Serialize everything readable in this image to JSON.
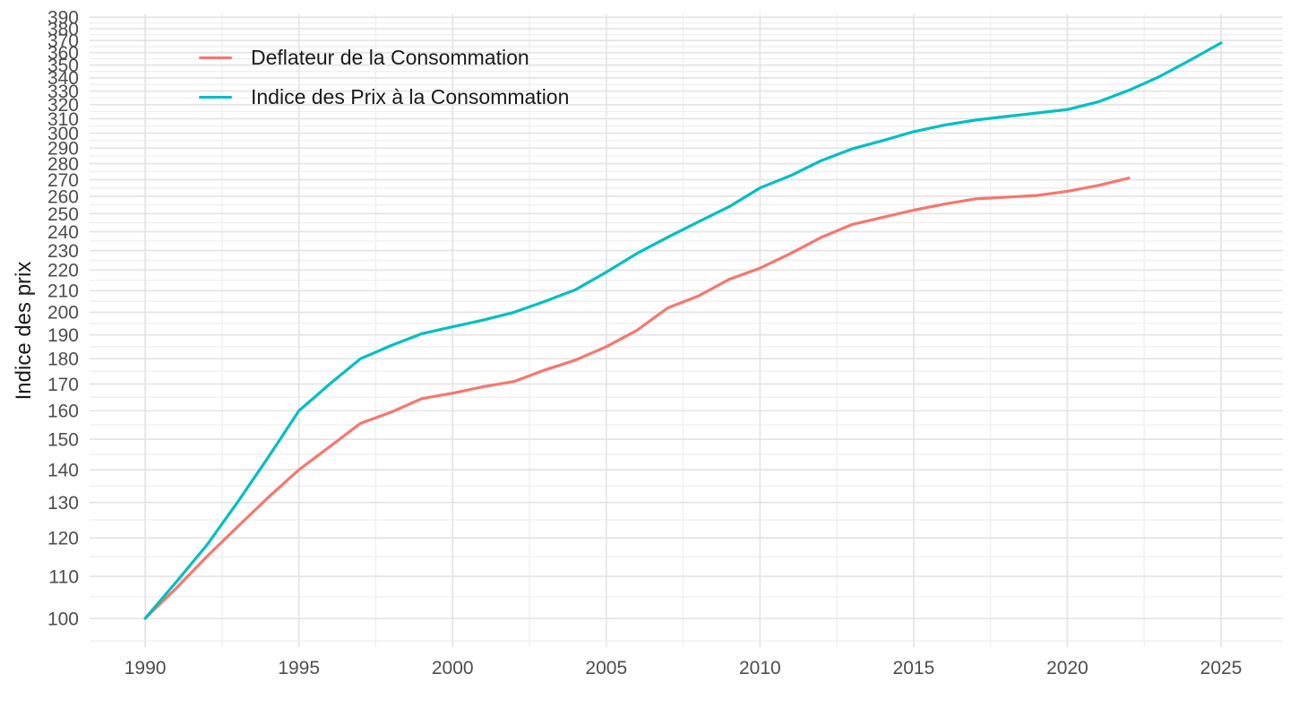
{
  "chart_data": {
    "type": "line",
    "title": "",
    "xlabel": "",
    "ylabel": "Indice des prix",
    "y_scale": "log",
    "frequency": "annual",
    "x_domain": [
      1988.19,
      2027.01
    ],
    "y_domain": [
      93.7,
      392.6
    ],
    "x_ticks": [
      1990,
      1995,
      2000,
      2005,
      2010,
      2015,
      2020,
      2025
    ],
    "x_minor_ticks": [
      1992.5,
      1997.5,
      2002.5,
      2007.5,
      2012.5,
      2017.5,
      2022.5
    ],
    "y_ticks": [
      100,
      110,
      120,
      130,
      140,
      150,
      160,
      170,
      180,
      190,
      200,
      210,
      220,
      230,
      240,
      250,
      260,
      270,
      280,
      290,
      300,
      310,
      320,
      330,
      340,
      350,
      360,
      370,
      380,
      390
    ],
    "y_minor_ticks": [
      95,
      105,
      115,
      125,
      135,
      145,
      155,
      165,
      175,
      185,
      195,
      205,
      215,
      225,
      235,
      245,
      255,
      265,
      275,
      285,
      295,
      305,
      315,
      325,
      335,
      345,
      355,
      365,
      375,
      385
    ],
    "grid": {
      "major_color": "#E4E4E4",
      "minor_color": "#EFEFEF",
      "background": "#FFFFFF"
    },
    "axis_text_color": "#4D4D4D",
    "legend_position": "top-left-inside",
    "series": [
      {
        "name": "Deflateur de la Consommation",
        "color": "#F8766D",
        "x_start": 1990,
        "x_end": 2022,
        "values": [
          100,
          107,
          115,
          123,
          131.5,
          140,
          147.5,
          155.5,
          159.5,
          164.5,
          166.5,
          169,
          171,
          175.5,
          179.5,
          185,
          192,
          202,
          207.5,
          215.5,
          221,
          228.5,
          237,
          244,
          248,
          252,
          255.5,
          258.5,
          259.5,
          260.5,
          263,
          266.5,
          271
        ]
      },
      {
        "name": "Indice des Prix à la Consommation",
        "color": "#00BFC4",
        "x_start": 1990,
        "x_end": 2025,
        "values": [
          100,
          108.5,
          118,
          130,
          144,
          160,
          170,
          180,
          185.5,
          190.5,
          193.5,
          196.5,
          200,
          205,
          210.5,
          219,
          228.5,
          237,
          245.5,
          254,
          265,
          272.5,
          282,
          289.5,
          295,
          301,
          305.5,
          309,
          311.5,
          314,
          316.5,
          322,
          330.5,
          341,
          354,
          368
        ]
      }
    ]
  }
}
